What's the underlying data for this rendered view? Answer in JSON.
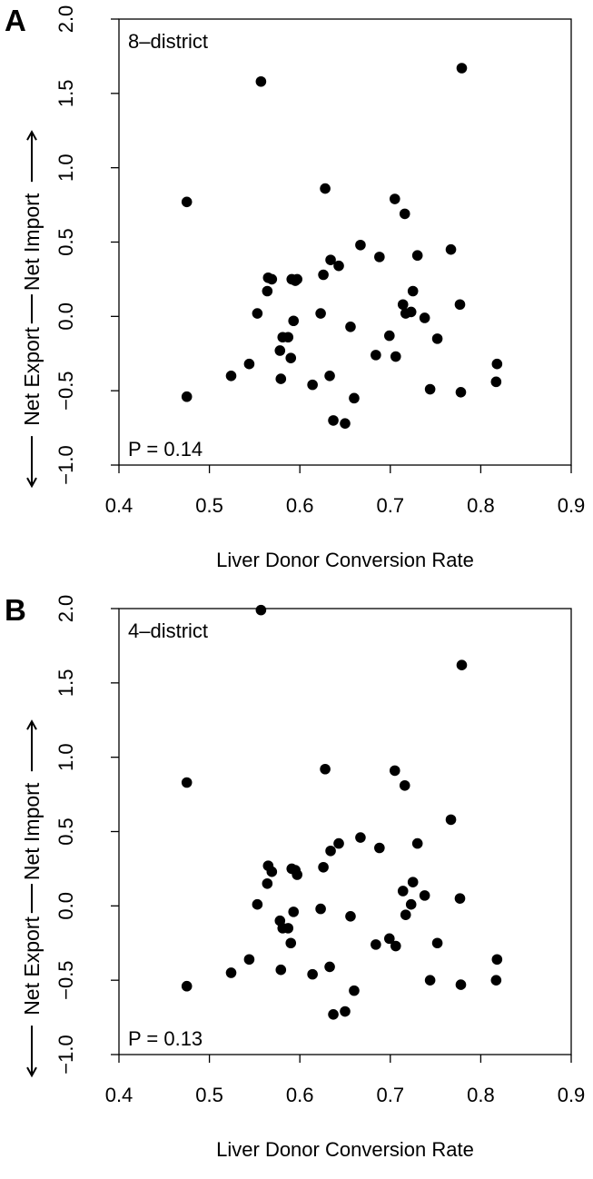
{
  "chart_data": [
    {
      "type": "scatter",
      "panel_letter": "A",
      "inset_label": "8–district",
      "p_value_label": "P = 0.14",
      "xlabel": "Liver Donor Conversion Rate",
      "ylabel_left": "Net Export",
      "ylabel_right": "Net Import",
      "xlim": [
        0.4,
        0.9
      ],
      "ylim": [
        -1.0,
        2.0
      ],
      "xticks": [
        "0.4",
        "0.5",
        "0.6",
        "0.7",
        "0.8",
        "0.9"
      ],
      "yticks": [
        "−1.0",
        "−0.5",
        "0.0",
        "0.5",
        "1.0",
        "1.5",
        "2.0"
      ],
      "grid": false,
      "point_color": "#000000",
      "points": [
        {
          "x": 0.475,
          "y": 0.77
        },
        {
          "x": 0.475,
          "y": -0.54
        },
        {
          "x": 0.524,
          "y": -0.4
        },
        {
          "x": 0.544,
          "y": -0.32
        },
        {
          "x": 0.553,
          "y": 0.02
        },
        {
          "x": 0.557,
          "y": 1.58
        },
        {
          "x": 0.564,
          "y": 0.17
        },
        {
          "x": 0.565,
          "y": 0.26
        },
        {
          "x": 0.569,
          "y": 0.25
        },
        {
          "x": 0.578,
          "y": -0.23
        },
        {
          "x": 0.579,
          "y": -0.42
        },
        {
          "x": 0.581,
          "y": -0.14
        },
        {
          "x": 0.587,
          "y": -0.14
        },
        {
          "x": 0.59,
          "y": -0.28
        },
        {
          "x": 0.591,
          "y": 0.25
        },
        {
          "x": 0.593,
          "y": -0.03
        },
        {
          "x": 0.595,
          "y": 0.24
        },
        {
          "x": 0.597,
          "y": 0.25
        },
        {
          "x": 0.614,
          "y": -0.46
        },
        {
          "x": 0.623,
          "y": 0.02
        },
        {
          "x": 0.626,
          "y": 0.28
        },
        {
          "x": 0.628,
          "y": 0.86
        },
        {
          "x": 0.633,
          "y": -0.4
        },
        {
          "x": 0.634,
          "y": 0.38
        },
        {
          "x": 0.637,
          "y": -0.7
        },
        {
          "x": 0.643,
          "y": 0.34
        },
        {
          "x": 0.65,
          "y": -0.72
        },
        {
          "x": 0.656,
          "y": -0.07
        },
        {
          "x": 0.66,
          "y": -0.55
        },
        {
          "x": 0.667,
          "y": 0.48
        },
        {
          "x": 0.684,
          "y": -0.26
        },
        {
          "x": 0.688,
          "y": 0.4
        },
        {
          "x": 0.699,
          "y": -0.13
        },
        {
          "x": 0.705,
          "y": 0.79
        },
        {
          "x": 0.706,
          "y": -0.27
        },
        {
          "x": 0.714,
          "y": 0.08
        },
        {
          "x": 0.716,
          "y": 0.69
        },
        {
          "x": 0.717,
          "y": 0.02
        },
        {
          "x": 0.723,
          "y": 0.03
        },
        {
          "x": 0.725,
          "y": 0.17
        },
        {
          "x": 0.73,
          "y": 0.41
        },
        {
          "x": 0.738,
          "y": -0.01
        },
        {
          "x": 0.744,
          "y": -0.49
        },
        {
          "x": 0.752,
          "y": -0.15
        },
        {
          "x": 0.767,
          "y": 0.45
        },
        {
          "x": 0.777,
          "y": 0.08
        },
        {
          "x": 0.778,
          "y": -0.51
        },
        {
          "x": 0.779,
          "y": 1.67
        },
        {
          "x": 0.817,
          "y": -0.44
        },
        {
          "x": 0.818,
          "y": -0.32
        }
      ]
    },
    {
      "type": "scatter",
      "panel_letter": "B",
      "inset_label": "4–district",
      "p_value_label": "P = 0.13",
      "xlabel": "Liver Donor Conversion Rate",
      "ylabel_left": "Net Export",
      "ylabel_right": "Net Import",
      "xlim": [
        0.4,
        0.9
      ],
      "ylim": [
        -1.0,
        2.0
      ],
      "xticks": [
        "0.4",
        "0.5",
        "0.6",
        "0.7",
        "0.8",
        "0.9"
      ],
      "yticks": [
        "−1.0",
        "−0.5",
        "0.0",
        "0.5",
        "1.0",
        "1.5",
        "2.0"
      ],
      "grid": false,
      "point_color": "#000000",
      "points": [
        {
          "x": 0.475,
          "y": 0.83
        },
        {
          "x": 0.475,
          "y": -0.54
        },
        {
          "x": 0.524,
          "y": -0.45
        },
        {
          "x": 0.544,
          "y": -0.36
        },
        {
          "x": 0.553,
          "y": 0.01
        },
        {
          "x": 0.557,
          "y": 1.99
        },
        {
          "x": 0.564,
          "y": 0.15
        },
        {
          "x": 0.565,
          "y": 0.27
        },
        {
          "x": 0.569,
          "y": 0.23
        },
        {
          "x": 0.578,
          "y": -0.1
        },
        {
          "x": 0.579,
          "y": -0.43
        },
        {
          "x": 0.581,
          "y": -0.15
        },
        {
          "x": 0.587,
          "y": -0.15
        },
        {
          "x": 0.59,
          "y": -0.25
        },
        {
          "x": 0.591,
          "y": 0.25
        },
        {
          "x": 0.593,
          "y": -0.04
        },
        {
          "x": 0.595,
          "y": 0.24
        },
        {
          "x": 0.597,
          "y": 0.21
        },
        {
          "x": 0.614,
          "y": -0.46
        },
        {
          "x": 0.623,
          "y": -0.02
        },
        {
          "x": 0.626,
          "y": 0.26
        },
        {
          "x": 0.628,
          "y": 0.92
        },
        {
          "x": 0.633,
          "y": -0.41
        },
        {
          "x": 0.634,
          "y": 0.37
        },
        {
          "x": 0.637,
          "y": -0.73
        },
        {
          "x": 0.643,
          "y": 0.42
        },
        {
          "x": 0.65,
          "y": -0.71
        },
        {
          "x": 0.656,
          "y": -0.07
        },
        {
          "x": 0.66,
          "y": -0.57
        },
        {
          "x": 0.667,
          "y": 0.46
        },
        {
          "x": 0.684,
          "y": -0.26
        },
        {
          "x": 0.688,
          "y": 0.39
        },
        {
          "x": 0.699,
          "y": -0.22
        },
        {
          "x": 0.705,
          "y": 0.91
        },
        {
          "x": 0.706,
          "y": -0.27
        },
        {
          "x": 0.714,
          "y": 0.1
        },
        {
          "x": 0.716,
          "y": 0.81
        },
        {
          "x": 0.717,
          "y": -0.06
        },
        {
          "x": 0.723,
          "y": 0.01
        },
        {
          "x": 0.725,
          "y": 0.16
        },
        {
          "x": 0.73,
          "y": 0.42
        },
        {
          "x": 0.738,
          "y": 0.07
        },
        {
          "x": 0.744,
          "y": -0.5
        },
        {
          "x": 0.752,
          "y": -0.25
        },
        {
          "x": 0.767,
          "y": 0.58
        },
        {
          "x": 0.777,
          "y": 0.05
        },
        {
          "x": 0.778,
          "y": -0.53
        },
        {
          "x": 0.779,
          "y": 1.62
        },
        {
          "x": 0.817,
          "y": -0.5
        },
        {
          "x": 0.818,
          "y": -0.36
        }
      ]
    }
  ]
}
